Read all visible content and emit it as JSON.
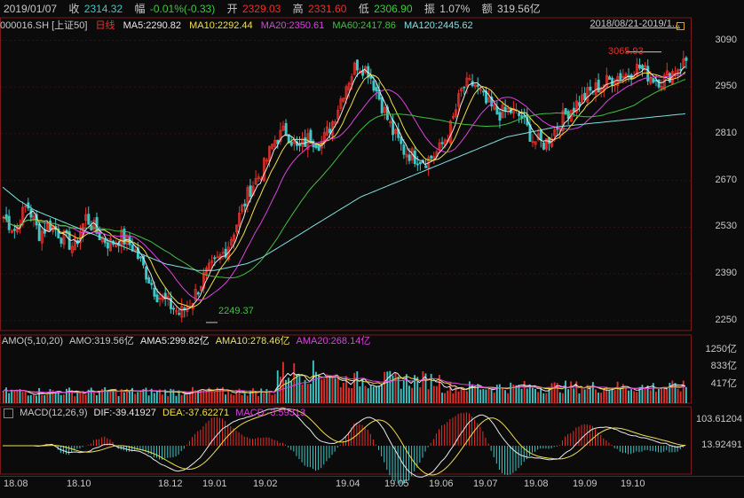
{
  "quote": {
    "date": "2019/01/07",
    "close_label": "收",
    "close": "2314.32",
    "change_label": "幅",
    "change": "-0.01%(-0.33)",
    "open_label": "开",
    "open": "2329.03",
    "high_label": "高",
    "high": "2331.60",
    "low_label": "低",
    "low": "2306.90",
    "amplitude_label": "振",
    "amplitude": "1.07%",
    "amount_label": "额",
    "amount": "319.56亿"
  },
  "main_legend": {
    "symbol": "000016.SH [上证50]",
    "period": "日线",
    "ma5": "MA5:2290.82",
    "ma10": "MA10:2292.44",
    "ma20": "MA20:2350.61",
    "ma60": "MA60:2417.86",
    "ma120": "MA120:2445.62",
    "range": "2018/08/21-2019/1..."
  },
  "amo_legend": {
    "name": "AMO(5,10,20)",
    "amo": "AMO:319.56亿",
    "ama5": "AMA5:299.82亿",
    "ama10": "AMA10:278.46亿",
    "ama20": "AMA20:268.14亿"
  },
  "macd_legend": {
    "name": "MACD(12,26,9)",
    "dif": "DIF:-39.41927",
    "dea": "DEA:-37.62271",
    "macd": "MACD:-3.59313"
  },
  "markers": {
    "high": "3065.93",
    "low": "2249.37"
  },
  "price_axis": [
    "3090",
    "2950",
    "2810",
    "2670",
    "2530",
    "2390",
    "2250"
  ],
  "amo_axis": [
    "1250亿",
    "833亿",
    "417亿"
  ],
  "macd_axis": [
    "103.61204",
    "13.92491"
  ],
  "x_axis": [
    "18.08",
    "18.10",
    "18.12",
    "19.01",
    "19.02",
    "19.04",
    "19.05",
    "19.06",
    "19.07",
    "19.08",
    "19.09",
    "19.10"
  ],
  "colors": {
    "up": "#e8302a",
    "down": "#3fc6c6",
    "ma5": "#e8e8e8",
    "ma10": "#f0e04a",
    "ma20": "#e040e0",
    "ma60": "#40c040",
    "ma120": "#80e0e0",
    "grid": "#2a2a2a",
    "frame": "#7a1a1a"
  },
  "chart_data": {
    "type": "candlestick",
    "price_range": [
      2220,
      3110
    ],
    "x_labels": [
      "18.08",
      "18.10",
      "18.12",
      "19.01",
      "19.02",
      "19.04",
      "19.05",
      "19.06",
      "19.07",
      "19.08",
      "19.09",
      "19.10"
    ],
    "close_path": [
      2560,
      2520,
      2600,
      2510,
      2540,
      2500,
      2470,
      2560,
      2510,
      2480,
      2500,
      2470,
      2400,
      2330,
      2300,
      2270,
      2310,
      2380,
      2420,
      2470,
      2560,
      2650,
      2700,
      2790,
      2820,
      2760,
      2800,
      2780,
      2850,
      2950,
      3020,
      3000,
      2910,
      2820,
      2760,
      2740,
      2730,
      2760,
      2830,
      2950,
      2960,
      2900,
      2870,
      2880,
      2860,
      2790,
      2780,
      2830,
      2880,
      2910,
      2940,
      2960,
      2980,
      2990,
      3010,
      2980,
      2970,
      3000,
      3030
    ],
    "ma120_path": [
      2650,
      2610,
      2580,
      2560,
      2540,
      2520,
      2500,
      2480,
      2460,
      2440,
      2420,
      2410,
      2400,
      2400,
      2410,
      2420,
      2440,
      2470,
      2500,
      2530,
      2560,
      2590,
      2620,
      2640,
      2660,
      2680,
      2700,
      2720,
      2740,
      2760,
      2780,
      2800,
      2810,
      2820,
      2830,
      2835,
      2840,
      2845,
      2850,
      2855,
      2860,
      2865,
      2870
    ],
    "price_high": 3065.93,
    "price_low": 2249.37,
    "amo_axis_values": [
      417,
      833,
      1250
    ],
    "macd_axis_values": [
      13.92491,
      103.61204
    ]
  }
}
